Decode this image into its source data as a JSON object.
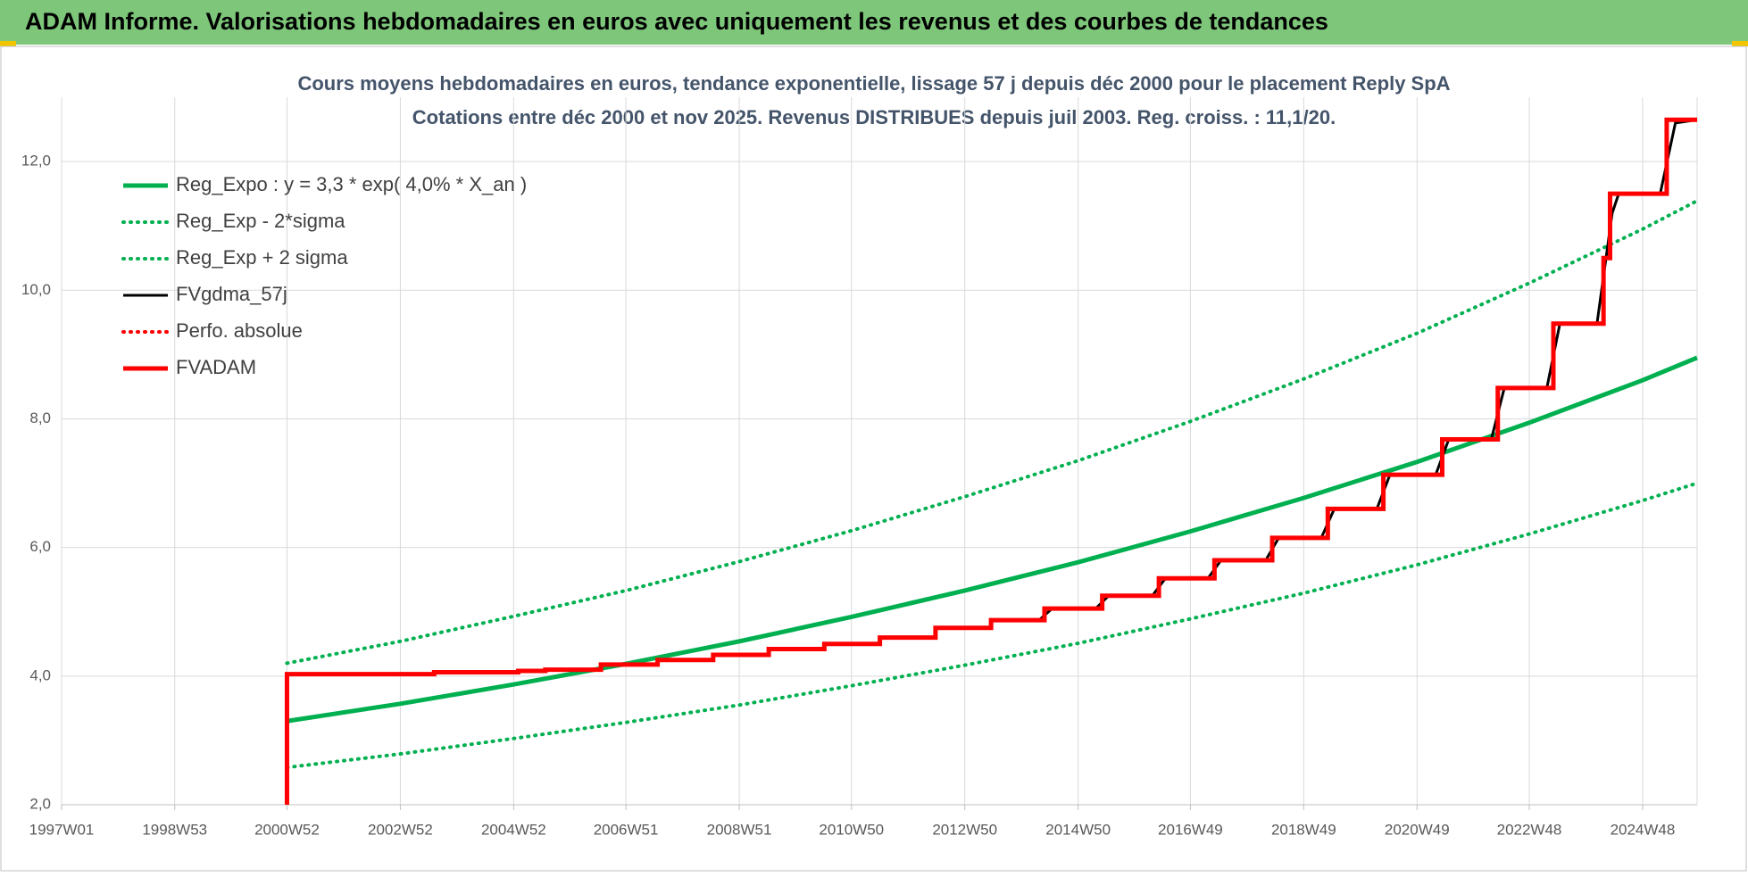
{
  "chart_data": {
    "type": "line",
    "title": "ADAM Informe. Valorisations hebdomadaires en euros avec uniquement les revenus et des courbes de tendances",
    "subtitle": [
      "Cours moyens hebdomadaires en euros, tendance exponentielle, lissage 57 j depuis déc 2000 pour le placement Reply SpA",
      "Cotations entre déc 2000 et nov 2025. Revenus DISTRIBUES depuis juil 2003. Reg. croiss. : 11,1/20."
    ],
    "xlim": [
      "1997W01",
      "2025W46"
    ],
    "xticks": [
      "1997W01",
      "1998W53",
      "2000W52",
      "2002W52",
      "2004W52",
      "2006W51",
      "2008W51",
      "2010W50",
      "2012W50",
      "2014W50",
      "2016W49",
      "2018W49",
      "2020W49",
      "2022W48",
      "2024W48"
    ],
    "ylim": [
      2,
      13
    ],
    "yticks": [
      {
        "value": 2,
        "label": "2,0"
      },
      {
        "value": 4,
        "label": "4,0"
      },
      {
        "value": 6,
        "label": "6,0"
      },
      {
        "value": 8,
        "label": "8,0"
      },
      {
        "value": 10,
        "label": "10,0"
      },
      {
        "value": 12,
        "label": "12,0"
      }
    ],
    "grid": true,
    "legend": "top-left",
    "series": [
      {
        "name": "Reg_Expo : y = 3,3 * exp( 4,0% *  X_an )",
        "color": "#00b050",
        "style": "solid",
        "x": [
          "2000W52",
          "2002W52",
          "2004W52",
          "2006W51",
          "2008W51",
          "2010W50",
          "2012W50",
          "2014W50",
          "2016W49",
          "2018W49",
          "2020W49",
          "2022W48",
          "2024W48",
          "2025W46"
        ],
        "values": [
          3.3,
          3.57,
          3.87,
          4.19,
          4.54,
          4.92,
          5.33,
          5.77,
          6.25,
          6.77,
          7.33,
          7.94,
          8.6,
          8.95
        ]
      },
      {
        "name": "Reg_Exp - 2*sigma",
        "color": "#00b050",
        "style": "dotted",
        "x": [
          "2000W52",
          "2002W52",
          "2004W52",
          "2006W51",
          "2008W51",
          "2010W50",
          "2012W50",
          "2014W50",
          "2016W49",
          "2018W49",
          "2020W49",
          "2022W48",
          "2024W48",
          "2025W46"
        ],
        "values": [
          2.58,
          2.79,
          3.03,
          3.28,
          3.55,
          3.85,
          4.17,
          4.51,
          4.89,
          5.29,
          5.73,
          6.21,
          6.73,
          7.0
        ]
      },
      {
        "name": "Reg_Exp + 2 sigma",
        "color": "#00b050",
        "style": "dotted",
        "x": [
          "2000W52",
          "2002W52",
          "2004W52",
          "2006W51",
          "2008W51",
          "2010W50",
          "2012W50",
          "2014W50",
          "2016W49",
          "2018W49",
          "2020W49",
          "2022W48",
          "2024W48",
          "2025W46"
        ],
        "values": [
          4.2,
          4.54,
          4.93,
          5.33,
          5.78,
          6.26,
          6.79,
          7.35,
          7.96,
          8.62,
          9.33,
          10.11,
          10.95,
          11.39
        ]
      },
      {
        "name": "FVgdma_57j",
        "color": "#000000",
        "style": "solid",
        "x": [
          "2014W14",
          "2014W26",
          "2015W14",
          "2015W26",
          "2016W14",
          "2016W26",
          "2017W13",
          "2017W25",
          "2018W14",
          "2018W26",
          "2019W13",
          "2019W25",
          "2020W12",
          "2020W24",
          "2021W14",
          "2021W26",
          "2022W13",
          "2022W25",
          "2023W12",
          "2023W24",
          "2024W06",
          "2024W20",
          "2024W26",
          "2025W12",
          "2025W26",
          "2025W46"
        ],
        "values": [
          4.87,
          5.05,
          5.05,
          5.25,
          5.25,
          5.52,
          5.52,
          5.8,
          5.8,
          6.15,
          6.15,
          6.6,
          6.6,
          7.13,
          7.13,
          7.68,
          7.68,
          8.48,
          8.48,
          9.48,
          9.48,
          11.2,
          11.5,
          11.5,
          12.6,
          12.65
        ]
      },
      {
        "name": "Perfo. absolue",
        "color": "#ff0000",
        "style": "dotted",
        "x": [],
        "values": []
      },
      {
        "name": "FVADAM",
        "color": "#ff0000",
        "style": "step",
        "x": [
          "2000W52",
          "2000W52",
          "2003W31",
          "2005W04",
          "2005W29",
          "2006W28",
          "2007W28",
          "2008W27",
          "2009W26",
          "2010W25",
          "2011W24",
          "2012W23",
          "2013W22",
          "2014W19",
          "2015W20",
          "2016W20",
          "2017W19",
          "2018W20",
          "2019W19",
          "2020W18",
          "2021W20",
          "2022W19",
          "2023W18",
          "2024W12",
          "2024W18",
          "2025W18",
          "2025W46"
        ],
        "values": [
          2.0,
          4.03,
          4.06,
          4.08,
          4.1,
          4.18,
          4.25,
          4.33,
          4.42,
          4.5,
          4.6,
          4.75,
          4.87,
          5.05,
          5.25,
          5.52,
          5.8,
          6.15,
          6.6,
          7.13,
          7.68,
          8.48,
          9.48,
          10.5,
          11.5,
          12.65,
          12.65
        ]
      }
    ]
  }
}
